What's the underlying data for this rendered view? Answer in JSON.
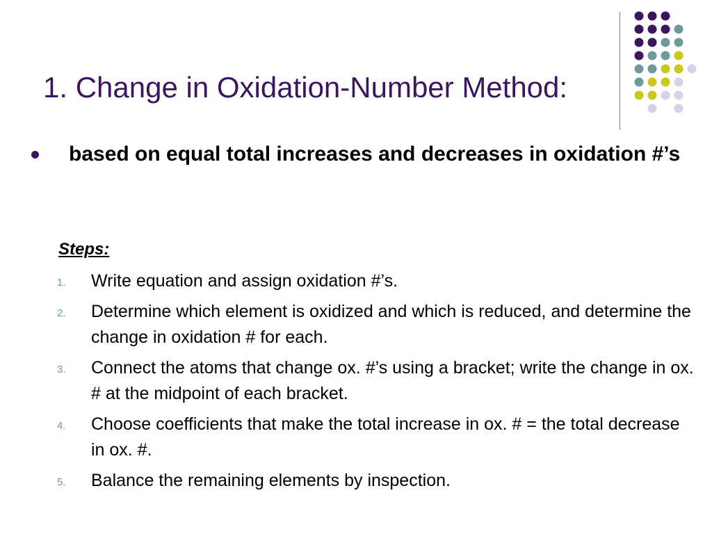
{
  "title": "1. Change in Oxidation-Number Method:",
  "bullet": "based on equal total increases and decreases in oxidation #’s",
  "steps_heading": "Steps:",
  "steps": [
    {
      "number": "1.",
      "text": "Write equation and assign oxidation #’s."
    },
    {
      "number": "2.",
      "text": "Determine which element is oxidized and which is reduced, and determine the change in oxidation # for each."
    },
    {
      "number": "3.",
      "text": "Connect the atoms that change ox. #’s using a bracket; write the change in ox. # at the midpoint of each bracket."
    },
    {
      "number": "4.",
      "text": "Choose coefficients that make the total increase in ox. # = the total decrease in ox. #."
    },
    {
      "number": "5.",
      "text": "Balance the remaining elements by inspection."
    }
  ],
  "theme_colors": {
    "purple": "#3b1560",
    "teal": "#6f9a9a",
    "yellow": "#c8c81e",
    "lavender": "#d4d2e6"
  },
  "decoration": {
    "dot_rows": [
      [
        "purple",
        "purple",
        "purple",
        "",
        ""
      ],
      [
        "purple",
        "purple",
        "purple",
        "teal",
        ""
      ],
      [
        "purple",
        "purple",
        "teal",
        "teal",
        ""
      ],
      [
        "purple",
        "teal",
        "teal",
        "yellow",
        ""
      ],
      [
        "teal",
        "teal",
        "yellow",
        "yellow",
        "lavender"
      ],
      [
        "teal",
        "yellow",
        "yellow",
        "lavender",
        ""
      ],
      [
        "yellow",
        "yellow",
        "lavender",
        "lavender",
        ""
      ],
      [
        "",
        "lavender",
        "",
        "lavender",
        ""
      ]
    ]
  }
}
